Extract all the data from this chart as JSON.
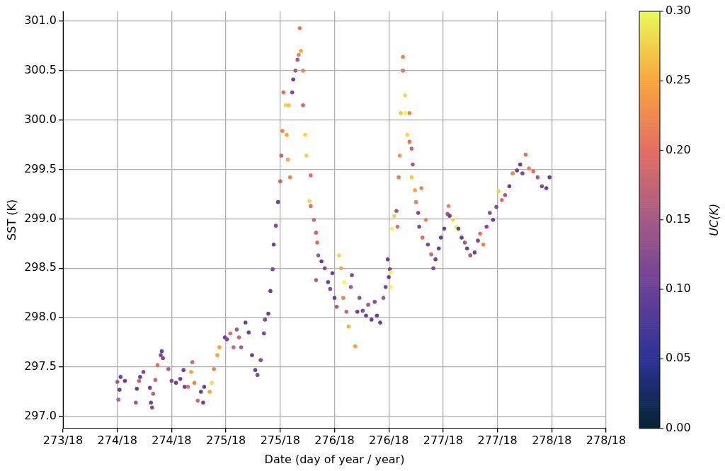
{
  "chart_data": {
    "type": "scatter",
    "xlabel": "Date (day of year / year)",
    "ylabel": "SST (K)",
    "clabel": "UC(K)",
    "xlim": [
      "--09-30T12:00",
      "--10-05T12:00"
    ],
    "xticks": [
      {
        "value": "--09-30T12:00",
        "label": "273/18"
      },
      {
        "value": "--10-01T00:00",
        "label": "274/18"
      },
      {
        "value": "--10-01T12:00",
        "label": "274/18"
      },
      {
        "value": "--10-02T00:00",
        "label": "275/18"
      },
      {
        "value": "--10-02T12:00",
        "label": "275/18"
      },
      {
        "value": "--10-03T00:00",
        "label": "276/18"
      },
      {
        "value": "--10-03T12:00",
        "label": "276/18"
      },
      {
        "value": "--10-04T00:00",
        "label": "277/18"
      },
      {
        "value": "--10-04T12:00",
        "label": "277/18"
      },
      {
        "value": "--10-05T00:00",
        "label": "278/18"
      },
      {
        "value": "--10-05T12:00",
        "label": "278/18"
      }
    ],
    "ylim": [
      296.88,
      301.1
    ],
    "yticks": [
      {
        "value": 297,
        "label": "297.0"
      },
      {
        "value": 297.5,
        "label": "297.5"
      },
      {
        "value": 298,
        "label": "298.0"
      },
      {
        "value": 298.5,
        "label": "298.5"
      },
      {
        "value": 299,
        "label": "299.0"
      },
      {
        "value": 299.5,
        "label": "299.5"
      },
      {
        "value": 300,
        "label": "300.0"
      },
      {
        "value": 300.5,
        "label": "300.5"
      },
      {
        "value": 301,
        "label": "301.0"
      }
    ],
    "clim": [
      0,
      0.3
    ],
    "cticks": [
      {
        "value": 0,
        "label": "0.00"
      },
      {
        "value": 0.05,
        "label": "0.05"
      },
      {
        "value": 0.1,
        "label": "0.10"
      },
      {
        "value": 0.15,
        "label": "0.15"
      },
      {
        "value": 0.2,
        "label": "0.20"
      },
      {
        "value": 0.25,
        "label": "0.25"
      },
      {
        "value": 0.3,
        "label": "0.30"
      }
    ],
    "grid": true,
    "marker": "circle",
    "legend": false,
    "x": [
      "--10-01T00:00",
      "--10-01T00:29",
      "--10-01T00:43",
      "--10-01T01:41",
      "--10-01T00:14",
      "--10-01T04:19",
      "--10-01T04:48",
      "--10-01T05:02",
      "--10-01T04:05",
      "--10-01T05:46",
      "--10-01T07:12",
      "--10-01T07:26",
      "--10-01T07:41",
      "--10-01T07:55",
      "--10-01T08:24",
      "--10-01T08:53",
      "--10-01T09:36",
      "--10-01T09:50",
      "--10-01T10:05",
      "--10-01T11:17",
      "--10-01T12:00",
      "--10-01T12:58",
      "--10-01T13:55",
      "--10-01T14:38",
      "--10-01T14:53",
      "--10-01T15:36",
      "--10-01T16:19",
      "--10-01T16:34",
      "--10-01T17:02",
      "--10-01T17:46",
      "--10-01T18:29",
      "--10-01T18:58",
      "--10-01T19:12",
      "--10-01T20:24",
      "--10-01T20:53",
      "--10-01T21:22",
      "--10-01T22:05",
      "--10-01T22:34",
      "--10-01T23:46",
      "--10-02T00:14",
      "--10-02T00:58",
      "--10-02T01:41",
      "--10-02T02:24",
      "--10-02T02:53",
      "--10-02T03:22",
      "--10-02T04:19",
      "--10-02T05:02",
      "--10-02T05:46",
      "--10-02T06:29",
      "--10-02T06:58",
      "--10-02T07:41",
      "--10-02T08:24",
      "--10-02T08:38",
      "--10-02T09:22",
      "--10-02T09:50",
      "--10-02T10:19",
      "--10-02T10:34",
      "--10-02T11:02",
      "--10-02T11:31",
      "--10-02T12:00",
      "--10-02T12:14",
      "--10-02T12:29",
      "--10-02T12:43",
      "--10-02T13:12",
      "--10-02T13:26",
      "--10-02T13:41",
      "--10-02T14:10",
      "--10-02T13:55",
      "--10-02T14:38",
      "--10-02T14:53",
      "--10-02T15:22",
      "--10-02T15:50",
      "--10-02T16:05",
      "--10-02T16:19",
      "--10-02T16:34",
      "--10-02T17:02",
      "--10-02T17:02",
      "--10-02T17:31",
      "--10-02T17:46",
      "--10-02T18:43",
      "--10-02T18:29",
      "--10-02T18:43",
      "--10-02T19:26",
      "--10-02T19:55",
      "--10-02T20:10",
      "--10-02T20:24",
      "--10-02T21:07",
      "--10-02T21:50",
      "--10-02T19:55",
      "--10-02T22:34",
      "--10-02T23:02",
      "--10-02T23:31",
      "--10-03T00:00",
      "--10-03T00:29",
      "--10-03T00:58",
      "--10-03T01:26",
      "--10-03T01:55",
      "--10-03T02:10",
      "--10-03T02:38",
      "--10-03T03:07",
      "--10-03T03:36",
      "--10-03T03:50",
      "--10-03T04:34",
      "--10-03T05:02",
      "--10-03T05:31",
      "--10-03T06:14",
      "--10-03T06:58",
      "--10-03T07:26",
      "--10-03T08:10",
      "--10-03T08:53",
      "--10-03T09:22",
      "--10-03T10:05",
      "--10-03T10:48",
      "--10-03T11:17",
      "--10-03T12:00",
      "--10-03T12:14",
      "--10-03T11:46",
      "--10-03T12:29",
      "--10-03T12:29",
      "--10-03T12:43",
      "--10-03T13:12",
      "--10-03T13:41",
      "--10-03T13:55",
      "--10-03T14:10",
      "--10-03T14:24",
      "--10-03T14:38",
      "--10-03T15:07",
      "--10-03T15:07",
      "--10-03T15:36",
      "--10-03T15:36",
      "--10-03T16:05",
      "--10-03T16:34",
      "--10-03T16:34",
      "--10-03T17:02",
      "--10-03T17:17",
      "--10-03T17:02",
      "--10-03T17:46",
      "--10-03T18:00",
      "--10-03T18:29",
      "--10-03T19:12",
      "--10-03T18:43",
      "--10-03T19:26",
      "--10-03T20:10",
      "--10-03T20:38",
      "--10-03T21:22",
      "--10-03T21:50",
      "--10-03T22:19",
      "--10-03T23:02",
      "--10-03T23:31",
      "--10-04T00:14",
      "--10-04T00:58",
      "--10-04T01:12",
      "--10-04T01:26",
      "--10-04T02:10",
      "--10-04T02:53",
      "--10-04T03:22",
      "--10-04T04:05",
      "--10-04T04:48",
      "--10-04T05:17",
      "--10-04T06:00",
      "--10-04T06:58",
      "--10-04T07:41",
      "--10-04T08:10",
      "--10-04T08:53",
      "--10-04T09:36",
      "--10-04T10:19",
      "--10-04T11:02",
      "--10-04T11:46",
      "--10-04T12:14",
      "--10-04T12:58",
      "--10-04T13:41",
      "--10-04T14:38",
      "--10-04T15:22",
      "--10-04T16:19",
      "--10-04T17:02",
      "--10-04T17:31",
      "--10-04T18:14",
      "--10-04T18:58",
      "--10-04T19:55",
      "--10-04T20:53",
      "--10-04T21:50",
      "--10-04T22:48",
      "--10-04T23:31"
    ],
    "values": [
      297.35,
      297.27,
      297.4,
      297.36,
      297.17,
      297.28,
      297.36,
      297.4,
      297.14,
      297.45,
      297.29,
      297.14,
      297.09,
      297.23,
      297.37,
      297.52,
      297.62,
      297.66,
      297.59,
      297.48,
      297.36,
      297.34,
      297.38,
      297.47,
      297.3,
      297.3,
      297.45,
      297.55,
      297.34,
      297.16,
      297.25,
      297.14,
      297.3,
      297.25,
      297.34,
      297.48,
      297.62,
      297.7,
      297.8,
      297.78,
      297.84,
      297.7,
      297.88,
      297.8,
      297.7,
      297.95,
      297.85,
      297.62,
      297.47,
      297.42,
      297.57,
      297.84,
      297.98,
      298.04,
      298.27,
      298.49,
      298.74,
      298.93,
      299.17,
      299.38,
      299.64,
      299.89,
      300.28,
      300.15,
      299.85,
      299.6,
      299.42,
      300.15,
      300.28,
      300.41,
      300.5,
      300.61,
      300.66,
      300.93,
      300.7,
      300.5,
      300.15,
      299.85,
      299.64,
      299.44,
      299.18,
      299.13,
      298.99,
      298.86,
      298.76,
      298.63,
      298.57,
      298.5,
      298.38,
      298.36,
      298.29,
      298.45,
      298.2,
      298.11,
      298.63,
      298.5,
      298.2,
      298.36,
      298.06,
      297.91,
      298.31,
      298.43,
      297.71,
      298.06,
      298.2,
      298.07,
      298.02,
      298.13,
      297.98,
      298.16,
      298.02,
      297.95,
      298.2,
      298.31,
      298.41,
      298.49,
      298.59,
      298.46,
      298.31,
      298.9,
      299.03,
      299.08,
      298.92,
      299.42,
      299.64,
      300.07,
      300.64,
      300.5,
      300.25,
      300.07,
      299.85,
      299.78,
      300.07,
      299.71,
      299.55,
      299.42,
      299.29,
      299.17,
      299.06,
      299.31,
      298.92,
      298.81,
      298.99,
      298.74,
      298.64,
      298.5,
      298.59,
      298.7,
      298.81,
      298.9,
      299.05,
      299.13,
      299.03,
      298.99,
      298.92,
      298.9,
      298.81,
      298.76,
      298.7,
      298.63,
      298.66,
      298.78,
      298.85,
      298.74,
      298.92,
      299.06,
      298.99,
      299.12,
      299.28,
      299.19,
      299.24,
      299.33,
      299.46,
      299.49,
      299.55,
      299.46,
      299.65,
      299.51,
      299.48,
      299.42,
      299.33,
      299.31,
      299.42
    ],
    "cvalues": [
      0.15,
      0.1,
      0.1,
      0.1,
      0.17,
      0.1,
      0.18,
      0.1,
      0.15,
      0.12,
      0.1,
      0.1,
      0.12,
      0.17,
      0.18,
      0.2,
      0.12,
      0.1,
      0.12,
      0.15,
      0.12,
      0.1,
      0.1,
      0.1,
      0.1,
      0.2,
      0.25,
      0.18,
      0.22,
      0.18,
      0.1,
      0.1,
      0.1,
      0.25,
      0.28,
      0.22,
      0.25,
      0.25,
      0.1,
      0.12,
      0.2,
      0.18,
      0.15,
      0.18,
      0.15,
      0.1,
      0.1,
      0.1,
      0.1,
      0.12,
      0.12,
      0.12,
      0.12,
      0.1,
      0.1,
      0.12,
      0.1,
      0.12,
      0.1,
      0.18,
      0.18,
      0.22,
      0.2,
      0.28,
      0.25,
      0.25,
      0.22,
      0.27,
      0.12,
      0.1,
      0.15,
      0.15,
      0.22,
      0.21,
      0.25,
      0.22,
      0.18,
      0.28,
      0.28,
      0.2,
      0.28,
      0.2,
      0.18,
      0.18,
      0.2,
      0.15,
      0.1,
      0.12,
      0.16,
      0.1,
      0.12,
      0.1,
      0.1,
      0.15,
      0.28,
      0.25,
      0.22,
      0.3,
      0.18,
      0.26,
      0.15,
      0.12,
      0.25,
      0.1,
      0.14,
      0.12,
      0.1,
      0.15,
      0.1,
      0.12,
      0.1,
      0.1,
      0.15,
      0.12,
      0.1,
      0.12,
      0.1,
      0.3,
      0.3,
      0.3,
      0.28,
      0.15,
      0.2,
      0.22,
      0.24,
      0.27,
      0.22,
      0.2,
      0.28,
      0.3,
      0.28,
      0.2,
      0.22,
      0.18,
      0.15,
      0.27,
      0.25,
      0.22,
      0.12,
      0.22,
      0.12,
      0.2,
      0.22,
      0.12,
      0.18,
      0.12,
      0.1,
      0.1,
      0.1,
      0.1,
      0.15,
      0.22,
      0.1,
      0.28,
      0.3,
      0.1,
      0.1,
      0.15,
      0.1,
      0.15,
      0.1,
      0.12,
      0.2,
      0.22,
      0.12,
      0.12,
      0.1,
      0.12,
      0.28,
      0.2,
      0.15,
      0.1,
      0.22,
      0.1,
      0.1,
      0.12,
      0.2,
      0.22,
      0.2,
      0.15,
      0.12,
      0.1,
      0.1
    ]
  }
}
